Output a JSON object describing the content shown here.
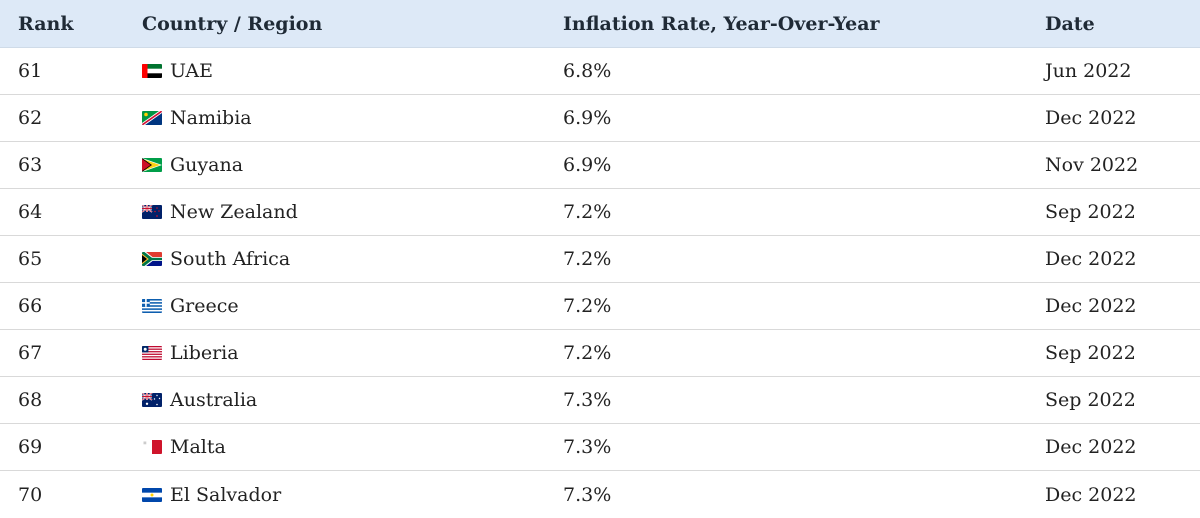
{
  "table": {
    "headers": {
      "rank": "Rank",
      "country": "Country / Region",
      "rate": "Inflation Rate, Year-Over-Year",
      "date": "Date"
    },
    "rows": [
      {
        "rank": "61",
        "country": "UAE",
        "flag": "uae-flag-icon",
        "rate": "6.8%",
        "date": "Jun 2022"
      },
      {
        "rank": "62",
        "country": "Namibia",
        "flag": "namibia-flag-icon",
        "rate": "6.9%",
        "date": "Dec 2022"
      },
      {
        "rank": "63",
        "country": "Guyana",
        "flag": "guyana-flag-icon",
        "rate": "6.9%",
        "date": "Nov 2022"
      },
      {
        "rank": "64",
        "country": "New Zealand",
        "flag": "new-zealand-flag-icon",
        "rate": "7.2%",
        "date": "Sep 2022"
      },
      {
        "rank": "65",
        "country": "South Africa",
        "flag": "south-africa-flag-icon",
        "rate": "7.2%",
        "date": "Dec 2022"
      },
      {
        "rank": "66",
        "country": "Greece",
        "flag": "greece-flag-icon",
        "rate": "7.2%",
        "date": "Dec 2022"
      },
      {
        "rank": "67",
        "country": "Liberia",
        "flag": "liberia-flag-icon",
        "rate": "7.2%",
        "date": "Sep 2022"
      },
      {
        "rank": "68",
        "country": "Australia",
        "flag": "australia-flag-icon",
        "rate": "7.3%",
        "date": "Sep 2022"
      },
      {
        "rank": "69",
        "country": "Malta",
        "flag": "malta-flag-icon",
        "rate": "7.3%",
        "date": "Dec 2022"
      },
      {
        "rank": "70",
        "country": "El Salvador",
        "flag": "el-salvador-flag-icon",
        "rate": "7.3%",
        "date": "Dec 2022"
      }
    ]
  },
  "colors": {
    "header_background": "#dde9f7",
    "row_divider": "#d9d9d9",
    "text": "#222222"
  }
}
